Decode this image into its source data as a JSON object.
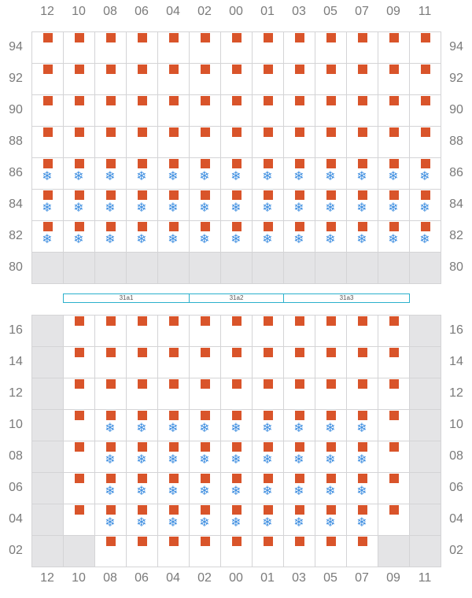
{
  "columns": [
    "12",
    "10",
    "08",
    "06",
    "04",
    "02",
    "00",
    "01",
    "03",
    "05",
    "07",
    "09",
    "11"
  ],
  "top_block": {
    "rows": [
      {
        "label": "94",
        "cells": [
          "c",
          "c",
          "c",
          "c",
          "c",
          "c",
          "c",
          "c",
          "c",
          "c",
          "c",
          "c",
          "c"
        ]
      },
      {
        "label": "92",
        "cells": [
          "c",
          "c",
          "c",
          "c",
          "c",
          "c",
          "c",
          "c",
          "c",
          "c",
          "c",
          "c",
          "c"
        ]
      },
      {
        "label": "90",
        "cells": [
          "c",
          "c",
          "c",
          "c",
          "c",
          "c",
          "c",
          "c",
          "c",
          "c",
          "c",
          "c",
          "c"
        ]
      },
      {
        "label": "88",
        "cells": [
          "c",
          "c",
          "c",
          "c",
          "c",
          "c",
          "c",
          "c",
          "c",
          "c",
          "c",
          "c",
          "c"
        ]
      },
      {
        "label": "86",
        "cells": [
          "cr",
          "cr",
          "cr",
          "cr",
          "cr",
          "cr",
          "cr",
          "cr",
          "cr",
          "cr",
          "cr",
          "cr",
          "cr"
        ]
      },
      {
        "label": "84",
        "cells": [
          "cr",
          "cr",
          "cr",
          "cr",
          "cr",
          "cr",
          "cr",
          "cr",
          "cr",
          "cr",
          "cr",
          "cr",
          "cr"
        ]
      },
      {
        "label": "82",
        "cells": [
          "cr",
          "cr",
          "cr",
          "cr",
          "cr",
          "cr",
          "cr",
          "cr",
          "cr",
          "cr",
          "cr",
          "cr",
          "cr"
        ]
      },
      {
        "label": "80",
        "cells": [
          "x",
          "x",
          "x",
          "x",
          "x",
          "x",
          "x",
          "x",
          "x",
          "x",
          "x",
          "x",
          "x"
        ]
      }
    ]
  },
  "hatches": [
    {
      "label": "31a1"
    },
    {
      "label": "31a2"
    },
    {
      "label": "31a3"
    }
  ],
  "bottom_block": {
    "rows": [
      {
        "label": "16",
        "cells": [
          "x",
          "c",
          "c",
          "c",
          "c",
          "c",
          "c",
          "c",
          "c",
          "c",
          "c",
          "c",
          "x"
        ]
      },
      {
        "label": "14",
        "cells": [
          "x",
          "c",
          "c",
          "c",
          "c",
          "c",
          "c",
          "c",
          "c",
          "c",
          "c",
          "c",
          "x"
        ]
      },
      {
        "label": "12",
        "cells": [
          "x",
          "c",
          "c",
          "c",
          "c",
          "c",
          "c",
          "c",
          "c",
          "c",
          "c",
          "c",
          "x"
        ]
      },
      {
        "label": "10",
        "cells": [
          "x",
          "c",
          "cr",
          "cr",
          "cr",
          "cr",
          "cr",
          "cr",
          "cr",
          "cr",
          "cr",
          "c",
          "x"
        ]
      },
      {
        "label": "08",
        "cells": [
          "x",
          "c",
          "cr",
          "cr",
          "cr",
          "cr",
          "cr",
          "cr",
          "cr",
          "cr",
          "cr",
          "c",
          "x"
        ]
      },
      {
        "label": "06",
        "cells": [
          "x",
          "c",
          "cr",
          "cr",
          "cr",
          "cr",
          "cr",
          "cr",
          "cr",
          "cr",
          "cr",
          "c",
          "x"
        ]
      },
      {
        "label": "04",
        "cells": [
          "x",
          "c",
          "cr",
          "cr",
          "cr",
          "cr",
          "cr",
          "cr",
          "cr",
          "cr",
          "cr",
          "c",
          "x"
        ]
      },
      {
        "label": "02",
        "cells": [
          "x",
          "x",
          "c",
          "c",
          "c",
          "c",
          "c",
          "c",
          "c",
          "c",
          "c",
          "x",
          "x"
        ]
      }
    ]
  },
  "legend_codes": {
    "c": "container",
    "cr": "reefer container",
    "x": "no slot"
  },
  "colors": {
    "container": "#d9542a",
    "reefer": "#3c8de0",
    "empty_slot": "#e4e4e6",
    "grid_line": "#d4d4d6",
    "hatch_border": "#2bb0cc"
  },
  "icons": {
    "reefer": "snowflake-icon",
    "container": "container-square-icon"
  },
  "snowflake_glyph": "❄"
}
